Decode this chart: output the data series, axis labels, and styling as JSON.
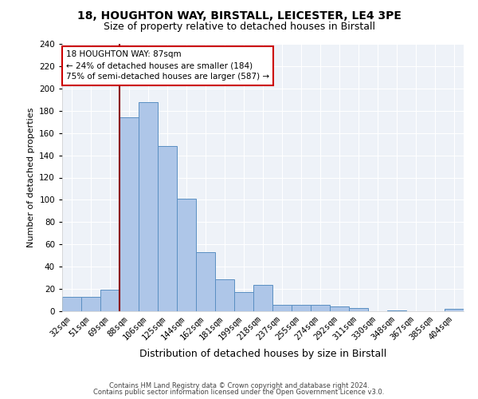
{
  "title1": "18, HOUGHTON WAY, BIRSTALL, LEICESTER, LE4 3PE",
  "title2": "Size of property relative to detached houses in Birstall",
  "xlabel": "Distribution of detached houses by size in Birstall",
  "ylabel": "Number of detached properties",
  "categories": [
    "32sqm",
    "51sqm",
    "69sqm",
    "88sqm",
    "106sqm",
    "125sqm",
    "144sqm",
    "162sqm",
    "181sqm",
    "199sqm",
    "218sqm",
    "237sqm",
    "255sqm",
    "274sqm",
    "292sqm",
    "311sqm",
    "330sqm",
    "348sqm",
    "367sqm",
    "385sqm",
    "404sqm"
  ],
  "values": [
    13,
    13,
    19,
    174,
    188,
    148,
    101,
    53,
    29,
    17,
    24,
    6,
    6,
    6,
    4,
    3,
    0,
    1,
    0,
    0,
    2
  ],
  "bar_color": "#aec6e8",
  "bar_edge_color": "#5a8fc2",
  "vline_color": "#8b0000",
  "vline_index": 3,
  "annotation_text": "18 HOUGHTON WAY: 87sqm\n← 24% of detached houses are smaller (184)\n75% of semi-detached houses are larger (587) →",
  "annotation_box_color": "white",
  "annotation_box_edge_color": "#cc0000",
  "footnote1": "Contains HM Land Registry data © Crown copyright and database right 2024.",
  "footnote2": "Contains public sector information licensed under the Open Government Licence v3.0.",
  "ylim": [
    0,
    240
  ],
  "yticks": [
    0,
    20,
    40,
    60,
    80,
    100,
    120,
    140,
    160,
    180,
    200,
    220,
    240
  ],
  "bg_color": "#eef2f8",
  "title1_fontsize": 10,
  "title2_fontsize": 9,
  "xlabel_fontsize": 9,
  "ylabel_fontsize": 8,
  "tick_fontsize": 7.5,
  "annot_fontsize": 7.5
}
